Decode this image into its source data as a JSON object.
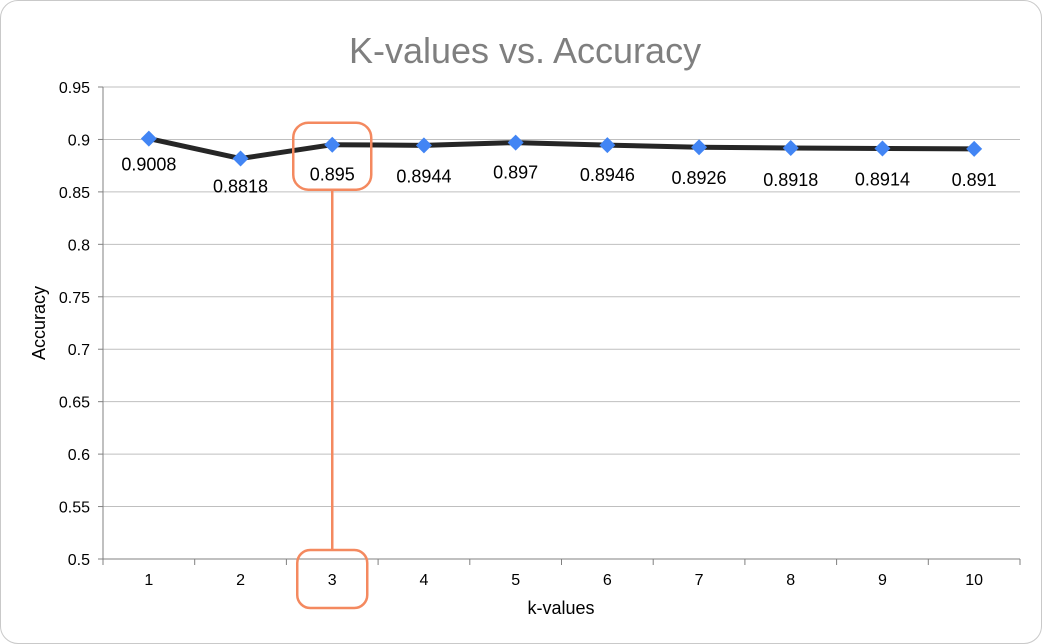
{
  "chart_data": {
    "type": "line",
    "title": "K-values vs. Accuracy",
    "xlabel": "k-values",
    "ylabel": "Accuracy",
    "categories": [
      "1",
      "2",
      "3",
      "4",
      "5",
      "6",
      "7",
      "8",
      "9",
      "10"
    ],
    "series": [
      {
        "values": [
          0.9008,
          0.8818,
          0.895,
          0.8944,
          0.897,
          0.8946,
          0.8926,
          0.8918,
          0.8914,
          0.891
        ],
        "data_labels": [
          "0.9008",
          "0.8818",
          "0.895",
          "0.8944",
          "0.897",
          "0.8946",
          "0.8926",
          "0.8918",
          "0.8914",
          "0.891"
        ]
      }
    ],
    "ylim": [
      0.5,
      0.95
    ],
    "yticks": [
      "0.95",
      "0.9",
      "0.85",
      "0.8",
      "0.75",
      "0.7",
      "0.65",
      "0.6",
      "0.55",
      "0.5"
    ],
    "grid": true,
    "legend": "none",
    "colors": {
      "line": "#262626",
      "marker": "#4285f4",
      "title": "#7f7f7f",
      "grid": "#bfbfbf",
      "highlight": "#f4895f"
    },
    "highlight": {
      "category": "3",
      "value": 0.895
    }
  }
}
